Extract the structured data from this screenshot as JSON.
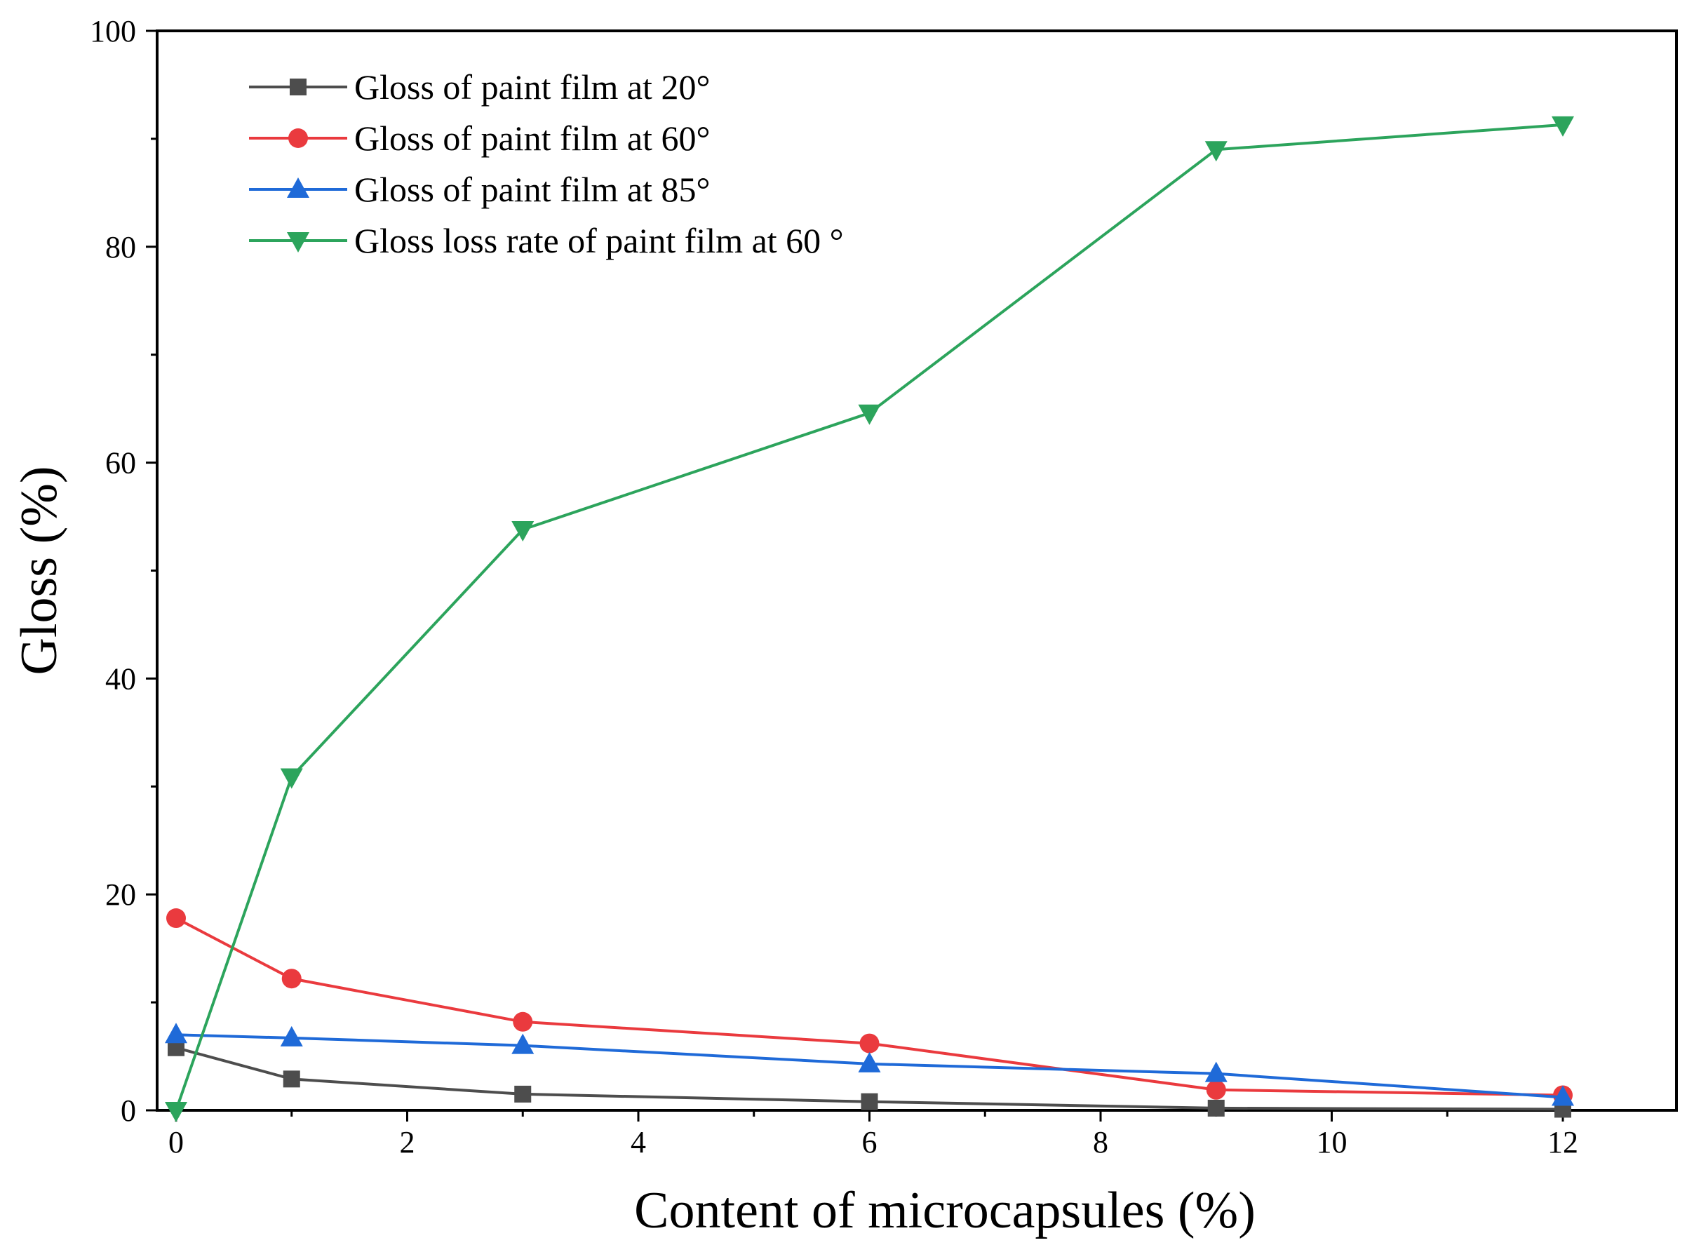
{
  "chart_data": {
    "type": "line",
    "title": "",
    "xlabel": "Content of microcapsules (%)",
    "ylabel": "Gloss (%)",
    "xlim": [
      0,
      13
    ],
    "ylim": [
      0,
      100
    ],
    "xticks": [
      0,
      2,
      4,
      6,
      8,
      10,
      12
    ],
    "xticklabels": [
      "0",
      "2",
      "4",
      "6",
      "8",
      "10",
      "12"
    ],
    "yticks": [
      0,
      20,
      40,
      60,
      80,
      100
    ],
    "yticklabels": [
      "0",
      "20",
      "40",
      "60",
      "80",
      "100"
    ],
    "grid": false,
    "legend_position": "top-left",
    "x": [
      0,
      1,
      3,
      6,
      9,
      12
    ],
    "series": [
      {
        "name": "Gloss of paint film at 20°",
        "color": "#4d4d4d",
        "marker": "square",
        "values": [
          5.8,
          2.9,
          1.5,
          0.8,
          0.2,
          0.1
        ]
      },
      {
        "name": "Gloss of paint film at 60°",
        "color": "#ea3a3e",
        "marker": "circle",
        "values": [
          17.8,
          12.2,
          8.2,
          6.2,
          1.9,
          1.4
        ]
      },
      {
        "name": "Gloss of paint film at 85°",
        "color": "#1f6ad8",
        "marker": "triangle-up",
        "values": [
          7.0,
          6.7,
          6.0,
          4.3,
          3.4,
          1.2
        ]
      },
      {
        "name": "Gloss loss rate of paint film at 60 °",
        "color": "#2ca45c",
        "marker": "triangle-down",
        "values": [
          0,
          30.9,
          53.8,
          64.6,
          89.0,
          91.3
        ]
      }
    ]
  }
}
